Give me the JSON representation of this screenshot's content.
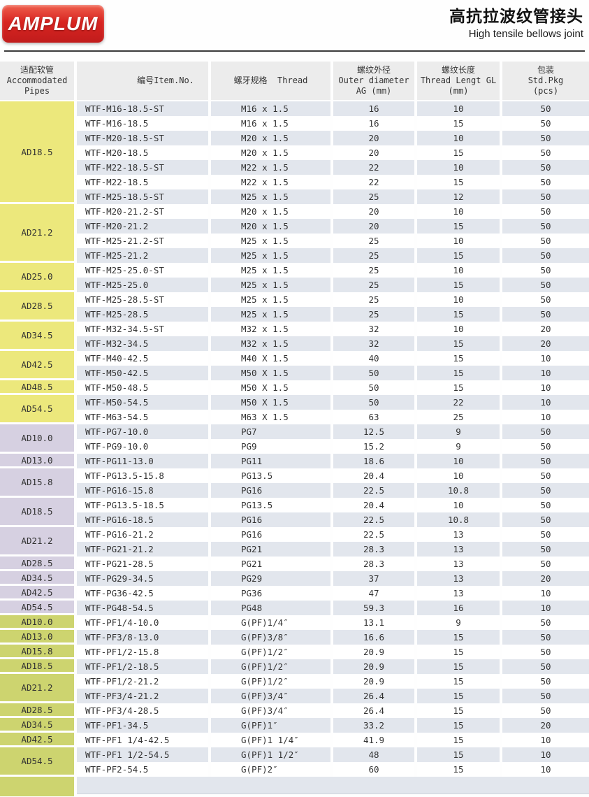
{
  "header": {
    "logo_text": "AMPLUM",
    "title_zh": "高抗拉波纹管接头",
    "title_en": "High tensile bellows joint"
  },
  "colors": {
    "brand_red": "#d8221f",
    "header_bg": "#ececec",
    "row_shaded": "#e2e6ed",
    "section_metric": "#ece87c",
    "section_pg": "#d6d0e1",
    "section_pf": "#cdd46f"
  },
  "table": {
    "columns": [
      {
        "key": "pipes",
        "lines": [
          "适配软管",
          "Accommodated",
          "Pipes"
        ]
      },
      {
        "key": "item-no",
        "lines": [
          "编号Item.No."
        ]
      },
      {
        "key": "thread",
        "lines": [
          "螺牙规格  Thread"
        ]
      },
      {
        "key": "outer-diameter",
        "lines": [
          "螺纹外径",
          "Outer diameter",
          "AG (mm)"
        ]
      },
      {
        "key": "thread-length",
        "lines": [
          "螺纹长度",
          "Thread Lengt GL",
          "(mm)"
        ]
      },
      {
        "key": "packing",
        "lines": [
          "包装",
          "Std.Pkg",
          "(pcs)"
        ]
      }
    ],
    "sections": [
      {
        "name": "metric-thread",
        "color": "#ece87c",
        "groups": [
          {
            "pipe": "AD18.5",
            "rows": [
              [
                "WTF-M16-18.5-ST",
                "M16 x 1.5",
                "16",
                "10",
                "50"
              ],
              [
                "WTF-M16-18.5",
                "M16 x 1.5",
                "16",
                "15",
                "50"
              ],
              [
                "WTF-M20-18.5-ST",
                "M20 x 1.5",
                "20",
                "10",
                "50"
              ],
              [
                "WTF-M20-18.5",
                "M20 x 1.5",
                "20",
                "15",
                "50"
              ],
              [
                "WTF-M22-18.5-ST",
                "M22 x 1.5",
                "22",
                "10",
                "50"
              ],
              [
                "WTF-M22-18.5",
                "M22 x 1.5",
                "22",
                "15",
                "50"
              ],
              [
                "WTF-M25-18.5-ST",
                "M25 x 1.5",
                "25",
                "12",
                "50"
              ]
            ]
          },
          {
            "pipe": "AD21.2",
            "rows": [
              [
                "WTF-M20-21.2-ST",
                "M20 x 1.5",
                "20",
                "10",
                "50"
              ],
              [
                "WTF-M20-21.2",
                "M20 x 1.5",
                "20",
                "15",
                "50"
              ],
              [
                "WTF-M25-21.2-ST",
                "M25 x 1.5",
                "25",
                "10",
                "50"
              ],
              [
                "WTF-M25-21.2",
                "M25 x 1.5",
                "25",
                "15",
                "50"
              ]
            ]
          },
          {
            "pipe": "AD25.0",
            "rows": [
              [
                "WTF-M25-25.0-ST",
                "M25 x 1.5",
                "25",
                "10",
                "50"
              ],
              [
                "WTF-M25-25.0",
                "M25 x 1.5",
                "25",
                "15",
                "50"
              ]
            ]
          },
          {
            "pipe": "AD28.5",
            "rows": [
              [
                "WTF-M25-28.5-ST",
                "M25 x 1.5",
                "25",
                "10",
                "50"
              ],
              [
                "WTF-M25-28.5",
                "M25 x 1.5",
                "25",
                "15",
                "50"
              ]
            ]
          },
          {
            "pipe": "AD34.5",
            "rows": [
              [
                "WTF-M32-34.5-ST",
                "M32 x 1.5",
                "32",
                "10",
                "20"
              ],
              [
                "WTF-M32-34.5",
                "M32 x 1.5",
                "32",
                "15",
                "20"
              ]
            ]
          },
          {
            "pipe": "AD42.5",
            "rows": [
              [
                "WTF-M40-42.5",
                "M40 X 1.5",
                "40",
                "15",
                "10"
              ],
              [
                "WTF-M50-42.5",
                "M50 X 1.5",
                "50",
                "15",
                "10"
              ]
            ]
          },
          {
            "pipe": "AD48.5",
            "rows": [
              [
                "WTF-M50-48.5",
                "M50 X 1.5",
                "50",
                "15",
                "10"
              ]
            ]
          },
          {
            "pipe": "AD54.5",
            "rows": [
              [
                "WTF-M50-54.5",
                "M50 X 1.5",
                "50",
                "22",
                "10"
              ],
              [
                "WTF-M63-54.5",
                "M63 X 1.5",
                "63",
                "25",
                "10"
              ]
            ]
          }
        ]
      },
      {
        "name": "pg-thread",
        "color": "#d6d0e1",
        "groups": [
          {
            "pipe": "AD10.0",
            "rows": [
              [
                "WTF-PG7-10.0",
                "PG7",
                "12.5",
                "9",
                "50"
              ],
              [
                "WTF-PG9-10.0",
                "PG9",
                "15.2",
                "9",
                "50"
              ]
            ]
          },
          {
            "pipe": "AD13.0",
            "rows": [
              [
                "WTF-PG11-13.0",
                "PG11",
                "18.6",
                "10",
                "50"
              ]
            ]
          },
          {
            "pipe": "AD15.8",
            "rows": [
              [
                "WTF-PG13.5-15.8",
                "PG13.5",
                "20.4",
                "10",
                "50"
              ],
              [
                "WTF-PG16-15.8",
                "PG16",
                "22.5",
                "10.8",
                "50"
              ]
            ]
          },
          {
            "pipe": "AD18.5",
            "rows": [
              [
                "WTF-PG13.5-18.5",
                "PG13.5",
                "20.4",
                "10",
                "50"
              ],
              [
                "WTF-PG16-18.5",
                "PG16",
                "22.5",
                "10.8",
                "50"
              ]
            ]
          },
          {
            "pipe": "AD21.2",
            "rows": [
              [
                "WTF-PG16-21.2",
                "PG16",
                "22.5",
                "13",
                "50"
              ],
              [
                "WTF-PG21-21.2",
                "PG21",
                "28.3",
                "13",
                "50"
              ]
            ]
          },
          {
            "pipe": "AD28.5",
            "rows": [
              [
                "WTF-PG21-28.5",
                "PG21",
                "28.3",
                "13",
                "50"
              ]
            ]
          },
          {
            "pipe": "AD34.5",
            "rows": [
              [
                "WTF-PG29-34.5",
                "PG29",
                "37",
                "13",
                "20"
              ]
            ]
          },
          {
            "pipe": "AD42.5",
            "rows": [
              [
                "WTF-PG36-42.5",
                "PG36",
                "47",
                "13",
                "10"
              ]
            ]
          },
          {
            "pipe": "AD54.5",
            "rows": [
              [
                "WTF-PG48-54.5",
                "PG48",
                "59.3",
                "16",
                "10"
              ]
            ]
          }
        ]
      },
      {
        "name": "gpf-thread",
        "color": "#cdd46f",
        "groups": [
          {
            "pipe": "AD10.0",
            "rows": [
              [
                "WTF-PF1/4-10.0",
                "G(PF)1/4″",
                "13.1",
                "9",
                "50"
              ]
            ]
          },
          {
            "pipe": "AD13.0",
            "rows": [
              [
                "WTF-PF3/8-13.0",
                "G(PF)3/8″",
                "16.6",
                "15",
                "50"
              ]
            ]
          },
          {
            "pipe": "AD15.8",
            "rows": [
              [
                "WTF-PF1/2-15.8",
                "G(PF)1/2″",
                "20.9",
                "15",
                "50"
              ]
            ]
          },
          {
            "pipe": "AD18.5",
            "rows": [
              [
                "WTF-PF1/2-18.5",
                "G(PF)1/2″",
                "20.9",
                "15",
                "50"
              ]
            ]
          },
          {
            "pipe": "AD21.2",
            "rows": [
              [
                "WTF-PF1/2-21.2",
                "G(PF)1/2″",
                "20.9",
                "15",
                "50"
              ],
              [
                "WTF-PF3/4-21.2",
                "G(PF)3/4″",
                "26.4",
                "15",
                "50"
              ]
            ]
          },
          {
            "pipe": "AD28.5",
            "rows": [
              [
                "WTF-PF3/4-28.5",
                "G(PF)3/4″",
                "26.4",
                "15",
                "50"
              ]
            ]
          },
          {
            "pipe": "AD34.5",
            "rows": [
              [
                "WTF-PF1-34.5",
                "G(PF)1″",
                "33.2",
                "15",
                "20"
              ]
            ]
          },
          {
            "pipe": "AD42.5",
            "rows": [
              [
                "WTF-PF1 1/4-42.5",
                "G(PF)1 1/4″",
                "41.9",
                "15",
                "10"
              ]
            ]
          },
          {
            "pipe": "AD54.5",
            "rows": [
              [
                "WTF-PF1 1/2-54.5",
                "G(PF)1 1/2″",
                "48",
                "15",
                "10"
              ],
              [
                "WTF-PF2-54.5",
                "G(PF)2″",
                "60",
                "15",
                "10"
              ]
            ]
          }
        ]
      }
    ]
  }
}
